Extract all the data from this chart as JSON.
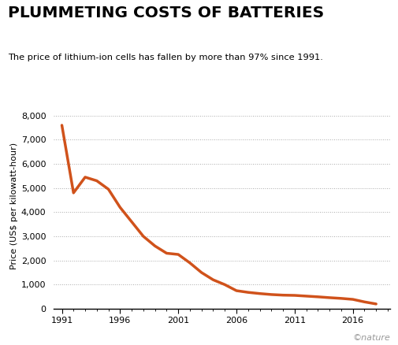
{
  "title": "PLUMMETING COSTS OF BATTERIES",
  "subtitle": "The price of lithium-ion cells has fallen by more than 97% since 1991.",
  "ylabel": "Price (US$ per kilowatt-hour)",
  "line_color": "#D0521B",
  "line_width": 2.5,
  "background_color": "#ffffff",
  "grid_color": "#aaaaaa",
  "grid_linestyle": ":",
  "yticks": [
    0,
    1000,
    2000,
    3000,
    4000,
    5000,
    6000,
    7000,
    8000
  ],
  "xticks": [
    1991,
    1996,
    2001,
    2006,
    2011,
    2016
  ],
  "ylim": [
    0,
    8500
  ],
  "xlim": [
    1990.3,
    2019.2
  ],
  "years": [
    1991,
    1992,
    1993,
    1994,
    1995,
    1996,
    1997,
    1998,
    1999,
    2000,
    2001,
    2002,
    2003,
    2004,
    2005,
    2006,
    2007,
    2008,
    2009,
    2010,
    2011,
    2012,
    2013,
    2014,
    2015,
    2016,
    2017,
    2018
  ],
  "prices": [
    7600,
    4800,
    5450,
    5300,
    4950,
    4200,
    3600,
    3000,
    2600,
    2300,
    2250,
    1900,
    1500,
    1200,
    1000,
    750,
    680,
    630,
    590,
    565,
    555,
    525,
    495,
    460,
    430,
    390,
    285,
    200
  ],
  "watermark": "©nature",
  "watermark_color": "#999999"
}
